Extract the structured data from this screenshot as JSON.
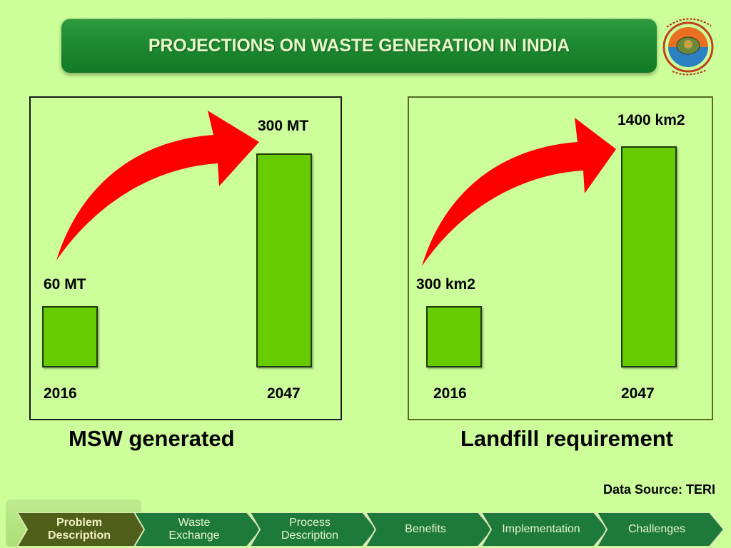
{
  "header": {
    "title": "PROJECTIONS ON WASTE GENERATION IN INDIA",
    "logo_name": "ministry-logo"
  },
  "chart_data": [
    {
      "type": "bar",
      "categories": [
        "2016",
        "2047"
      ],
      "values": [
        60,
        300
      ],
      "value_labels": [
        "60 MT",
        "300 MT"
      ],
      "title": "MSW generated",
      "ylim": [
        0,
        300
      ]
    },
    {
      "type": "bar",
      "categories": [
        "2016",
        "2047"
      ],
      "values": [
        300,
        1400
      ],
      "value_labels": [
        "300 km2",
        "1400 km2"
      ],
      "title": "Landfill requirement",
      "ylim": [
        0,
        1400
      ]
    }
  ],
  "footer": {
    "source": "Data Source: TERI"
  },
  "nav": {
    "items": [
      {
        "line1": "Problem",
        "line2": "Description",
        "active": true
      },
      {
        "line1": "Waste",
        "line2": "Exchange",
        "active": false
      },
      {
        "line1": "Process",
        "line2": "Description",
        "active": false
      },
      {
        "line1": "Benefits",
        "line2": "",
        "active": false
      },
      {
        "line1": "Implementation",
        "line2": "",
        "active": false
      },
      {
        "line1": "Challenges",
        "line2": "",
        "active": false
      }
    ]
  },
  "colors": {
    "background": "#ccff99",
    "banner": "#1e8a31",
    "bar": "#66cc00",
    "arrow": "#ff0000",
    "nav_active": "#4f5f1a",
    "nav_item": "#1e7a3a"
  }
}
